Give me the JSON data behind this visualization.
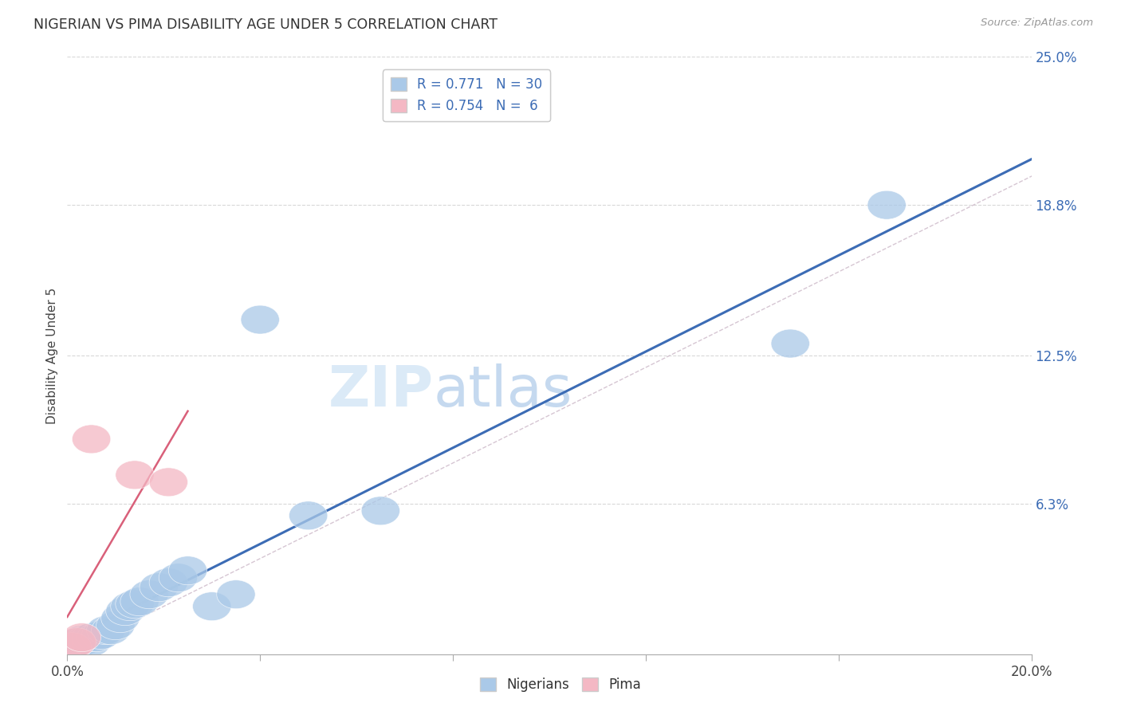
{
  "title": "NIGERIAN VS PIMA DISABILITY AGE UNDER 5 CORRELATION CHART",
  "source": "Source: ZipAtlas.com",
  "ylabel": "Disability Age Under 5",
  "nigerian_R": 0.771,
  "nigerian_N": 30,
  "pima_R": 0.754,
  "pima_N": 6,
  "nig_x": [
    0.001,
    0.002,
    0.002,
    0.003,
    0.003,
    0.004,
    0.005,
    0.005,
    0.006,
    0.007,
    0.008,
    0.009,
    0.01,
    0.011,
    0.012,
    0.013,
    0.014,
    0.015,
    0.017,
    0.019,
    0.021,
    0.023,
    0.025,
    0.03,
    0.035,
    0.04,
    0.05,
    0.065,
    0.15,
    0.17
  ],
  "nig_y": [
    0.003,
    0.004,
    0.005,
    0.005,
    0.006,
    0.006,
    0.005,
    0.007,
    0.007,
    0.008,
    0.01,
    0.01,
    0.012,
    0.015,
    0.018,
    0.02,
    0.021,
    0.022,
    0.025,
    0.028,
    0.03,
    0.032,
    0.035,
    0.02,
    0.025,
    0.14,
    0.058,
    0.06,
    0.13,
    0.188
  ],
  "pima_x": [
    0.001,
    0.002,
    0.003,
    0.005,
    0.014,
    0.021
  ],
  "pima_y": [
    0.003,
    0.005,
    0.007,
    0.09,
    0.075,
    0.072
  ],
  "blue_color": "#aac9e8",
  "pink_color": "#f4b8c4",
  "blue_line_color": "#3c6cb5",
  "pink_line_color": "#d9607a",
  "ref_line_color": "#ccb8c8",
  "ref_line_style": "--",
  "background_color": "#ffffff",
  "grid_color": "#d8d8d8",
  "y_ticks": [
    0.063,
    0.125,
    0.188,
    0.25
  ],
  "y_tick_labels": [
    "6.3%",
    "12.5%",
    "18.8%",
    "25.0%"
  ],
  "xlim": [
    0,
    0.2
  ],
  "ylim": [
    0,
    0.25
  ],
  "watermark": "ZIPatlas",
  "watermark_zip_color": "#c8ddef",
  "watermark_atlas_color": "#c8ddef"
}
